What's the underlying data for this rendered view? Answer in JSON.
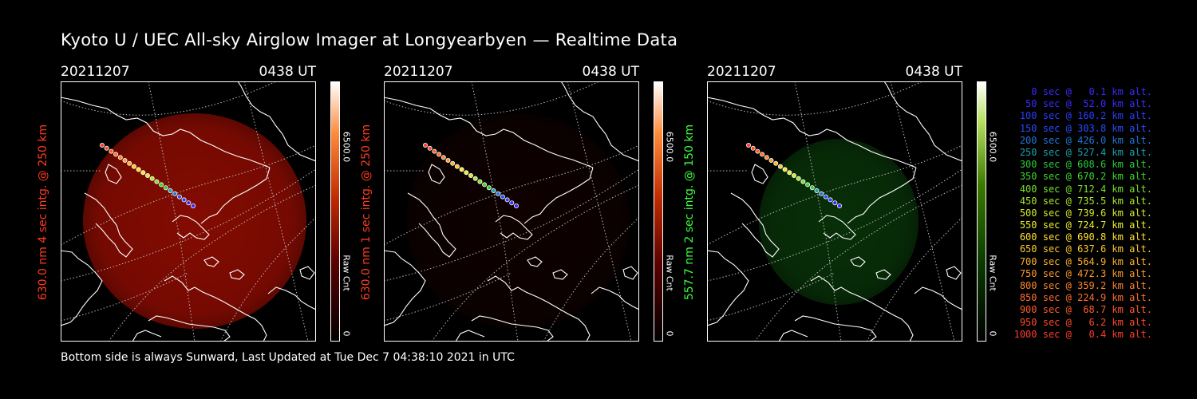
{
  "title": "Kyoto U / UEC All-sky Airglow Imager at Longyearbyen — Realtime Data",
  "footer": "Bottom side is always Sunward, Last Updated at Tue Dec  7 04:38:10 2021 in UTC",
  "colors": {
    "red_label": "#ff3a1e",
    "green_label": "#3aff3a"
  },
  "panels": [
    {
      "date": "20211207",
      "time": "0438 UT",
      "label": "630.0 nm 4 sec intg. @ 250 km",
      "cbar_max": "6500.0",
      "cbar_unit": "Raw Cnt",
      "cbar_min": "0",
      "glow_color": "#8a0c02",
      "glow_level": 0.85,
      "cbar_scheme": "red"
    },
    {
      "date": "20211207",
      "time": "0438 UT",
      "label": "630.0 nm 1 sec intg. @ 250 km",
      "cbar_max": "6500.0",
      "cbar_unit": "Raw Cnt",
      "cbar_min": "0",
      "glow_color": "#2a0301",
      "glow_level": 0.25,
      "cbar_scheme": "red"
    },
    {
      "date": "20211207",
      "time": "0438 UT",
      "label": "557.7 nm 2 sec intg. @ 150 km",
      "cbar_max": "6500.0",
      "cbar_unit": "Raw Cnt",
      "cbar_min": "0",
      "glow_color": "#0c4a0c",
      "glow_level": 0.55,
      "cbar_scheme": "green"
    }
  ],
  "legend": [
    {
      "text": "0 sec @   0.1 km alt.",
      "color": "#3a2aff"
    },
    {
      "text": "50 sec @  52.0 km alt.",
      "color": "#3a2aff"
    },
    {
      "text": "100 sec @ 160.2 km alt.",
      "color": "#2a3cff"
    },
    {
      "text": "150 sec @ 303.8 km alt.",
      "color": "#2a4cff"
    },
    {
      "text": "200 sec @ 426.0 km alt.",
      "color": "#1e78d8"
    },
    {
      "text": "250 sec @ 527.4 km alt.",
      "color": "#1aa0b0"
    },
    {
      "text": "300 sec @ 608.6 km alt.",
      "color": "#2acc3a"
    },
    {
      "text": "350 sec @ 670.2 km alt.",
      "color": "#3ad82a"
    },
    {
      "text": "400 sec @ 712.4 km alt.",
      "color": "#7ae02a"
    },
    {
      "text": "450 sec @ 735.5 km alt.",
      "color": "#a8e62a"
    },
    {
      "text": "500 sec @ 739.6 km alt.",
      "color": "#d6ea2a"
    },
    {
      "text": "550 sec @ 724.7 km alt.",
      "color": "#f0ee2a"
    },
    {
      "text": "600 sec @ 690.8 km alt.",
      "color": "#ffe02a"
    },
    {
      "text": "650 sec @ 637.6 km alt.",
      "color": "#ffc82a"
    },
    {
      "text": "700 sec @ 564.9 km alt.",
      "color": "#ffb02a"
    },
    {
      "text": "750 sec @ 472.3 km alt.",
      "color": "#ff982a"
    },
    {
      "text": "800 sec @ 359.2 km alt.",
      "color": "#ff842a"
    },
    {
      "text": "850 sec @ 224.9 km alt.",
      "color": "#ff6e2a"
    },
    {
      "text": "900 sec @  68.7 km alt.",
      "color": "#ff5a2a"
    },
    {
      "text": "950 sec @   6.2 km alt.",
      "color": "#ff4a2a"
    },
    {
      "text": "1000 sec @   0.4 km alt.",
      "color": "#ff3a2a"
    }
  ]
}
